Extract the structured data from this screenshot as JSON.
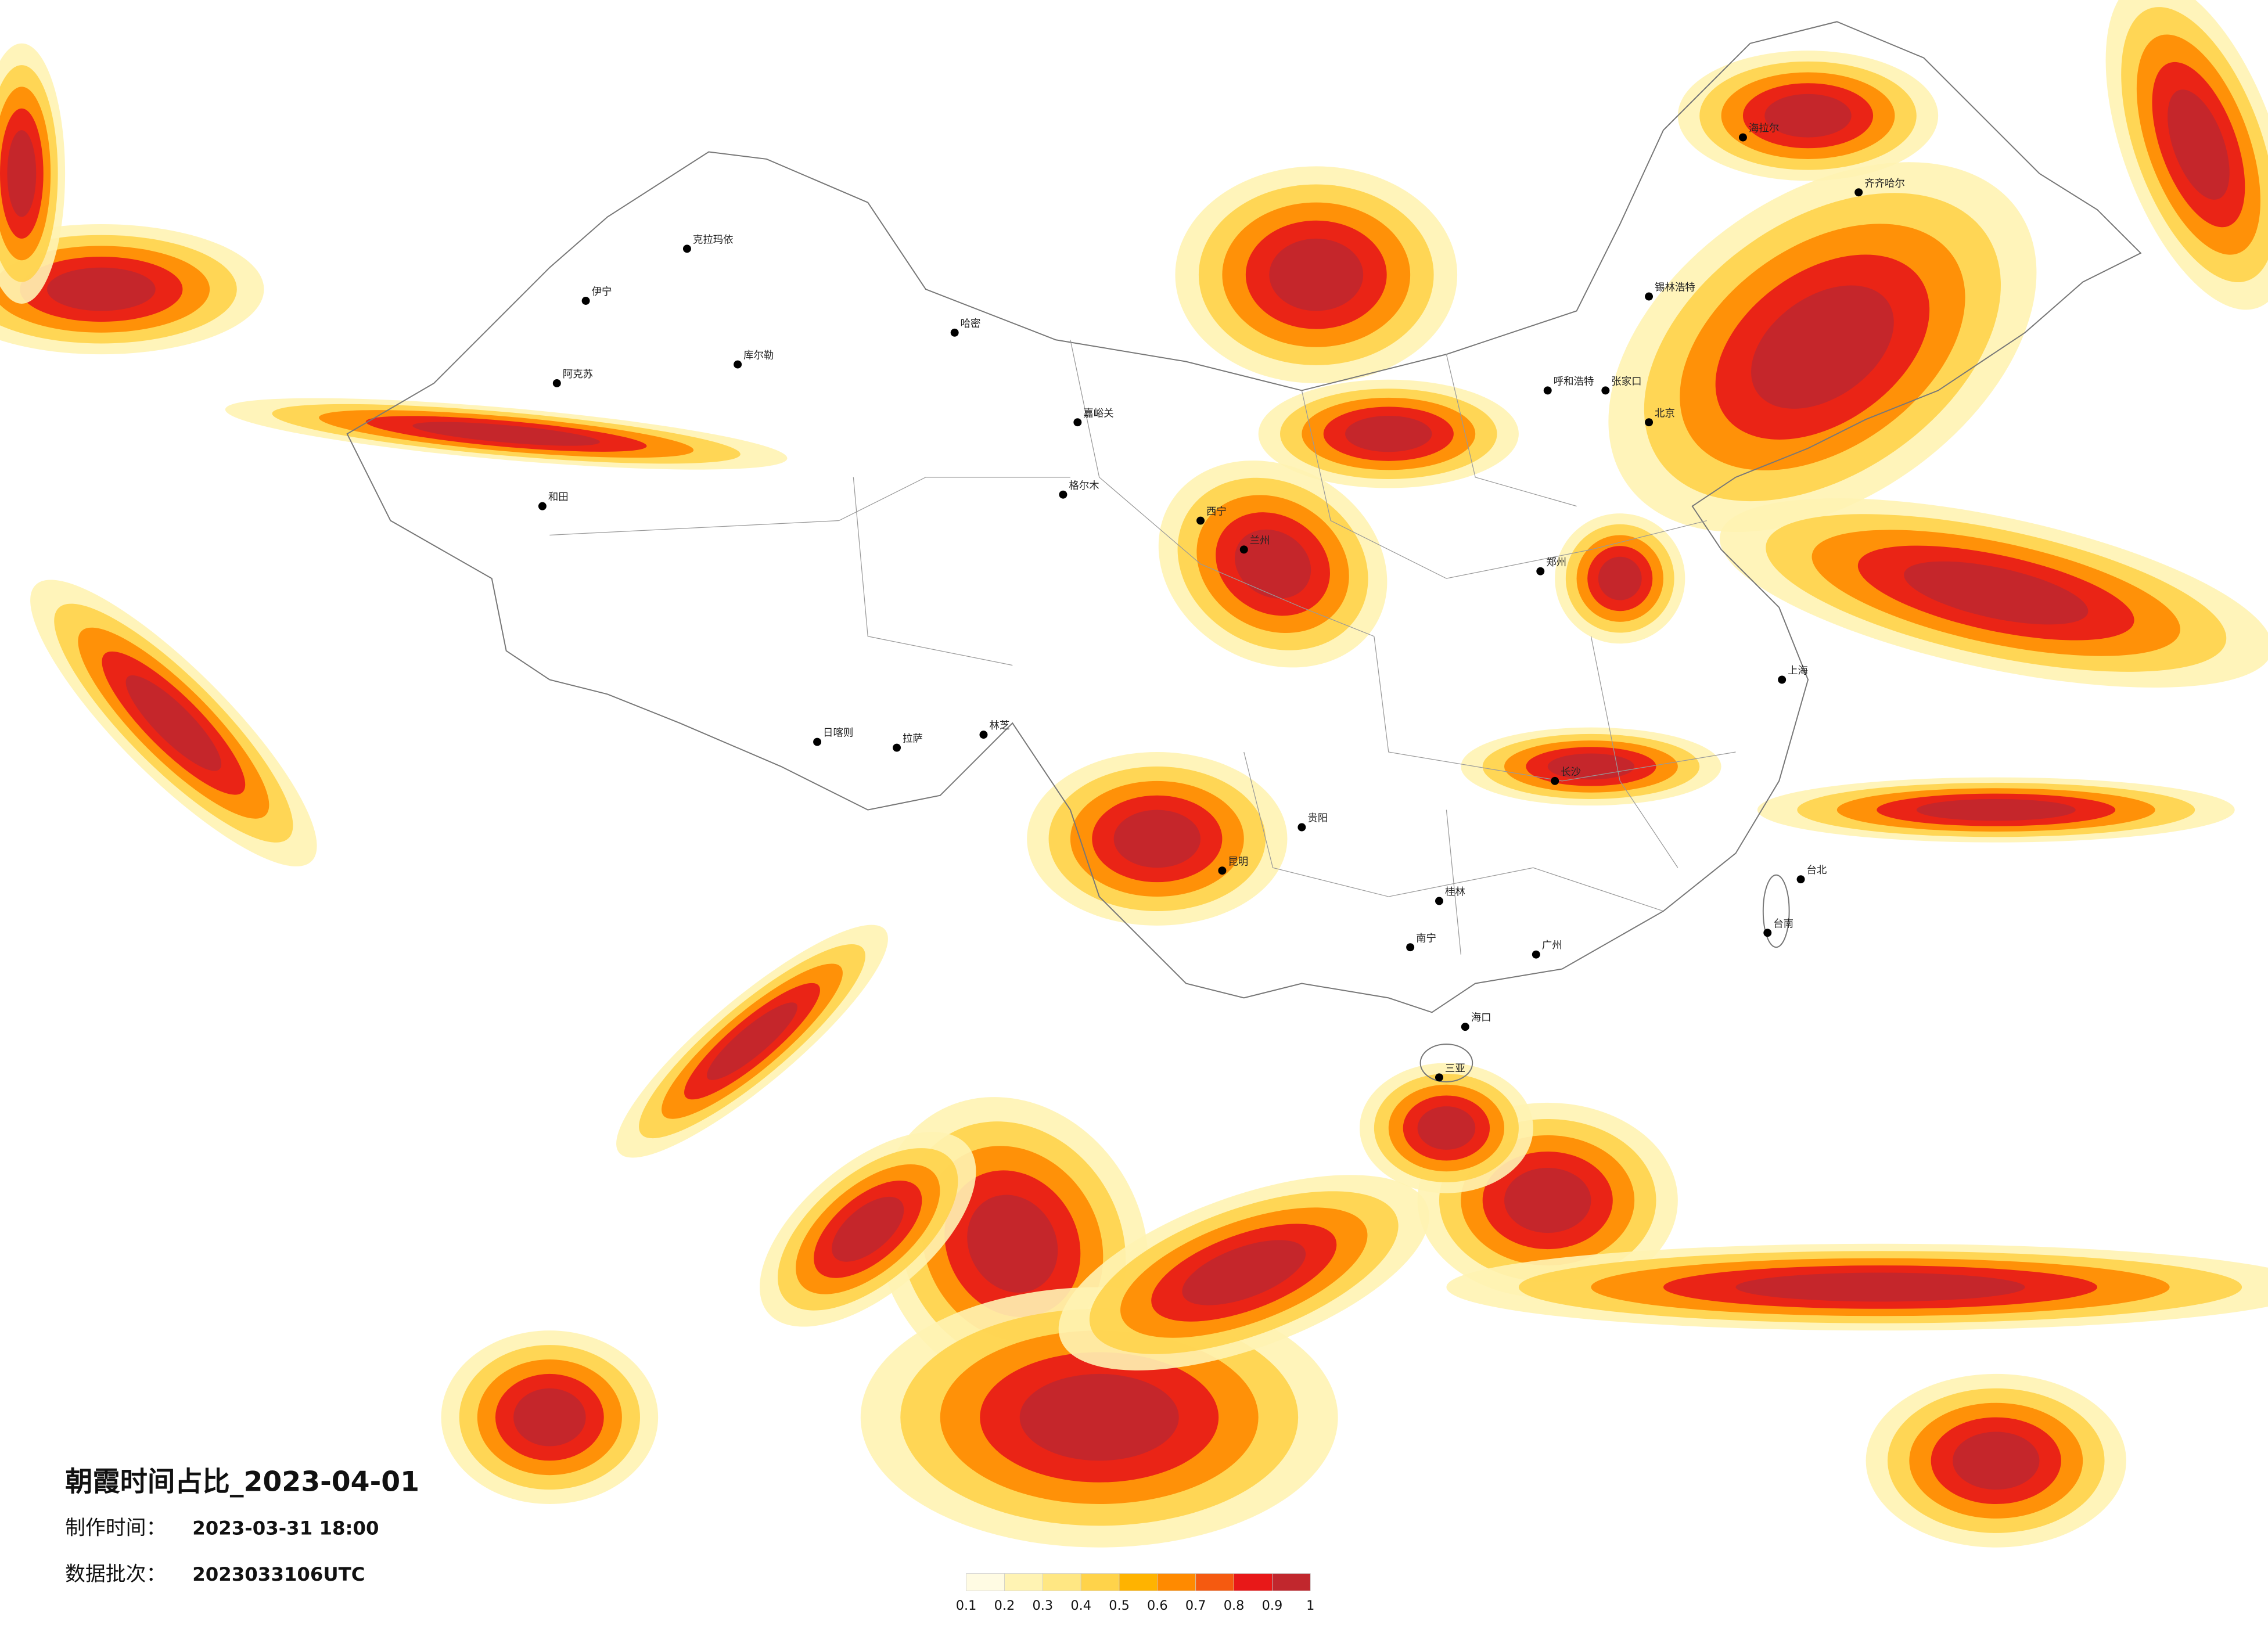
{
  "title": "朝霞时间占比_2023-04-01",
  "production_time": {
    "label": "制作时间：",
    "value": "2023-03-31 18:00"
  },
  "data_batch": {
    "label": "数据批次：",
    "value": "2023033106UTC"
  },
  "colorbar": {
    "ticks": [
      0.1,
      0.2,
      0.3,
      0.4,
      0.5,
      0.6,
      0.7,
      0.8,
      0.9,
      1
    ],
    "colors": [
      "#fffbe3",
      "#fff3b3",
      "#ffe783",
      "#ffd34a",
      "#ffb300",
      "#ff8a00",
      "#f55a10",
      "#e81818",
      "#c1272d"
    ]
  },
  "cities": [
    "克拉玛依",
    "伊宁",
    "阿克苏",
    "和田",
    "库尔勒",
    "哈密",
    "嘉峪关",
    "格尔木",
    "西宁",
    "兰州",
    "拉萨",
    "日喀则",
    "林芝",
    "昆明",
    "贵阳",
    "桂林",
    "长沙",
    "郑州",
    "北京",
    "张家口",
    "呼和浩特",
    "锡林浩特",
    "海拉尔",
    "齐齐哈尔",
    "上海",
    "广州",
    "南宁",
    "海口",
    "三亚",
    "台北",
    "台南"
  ]
}
